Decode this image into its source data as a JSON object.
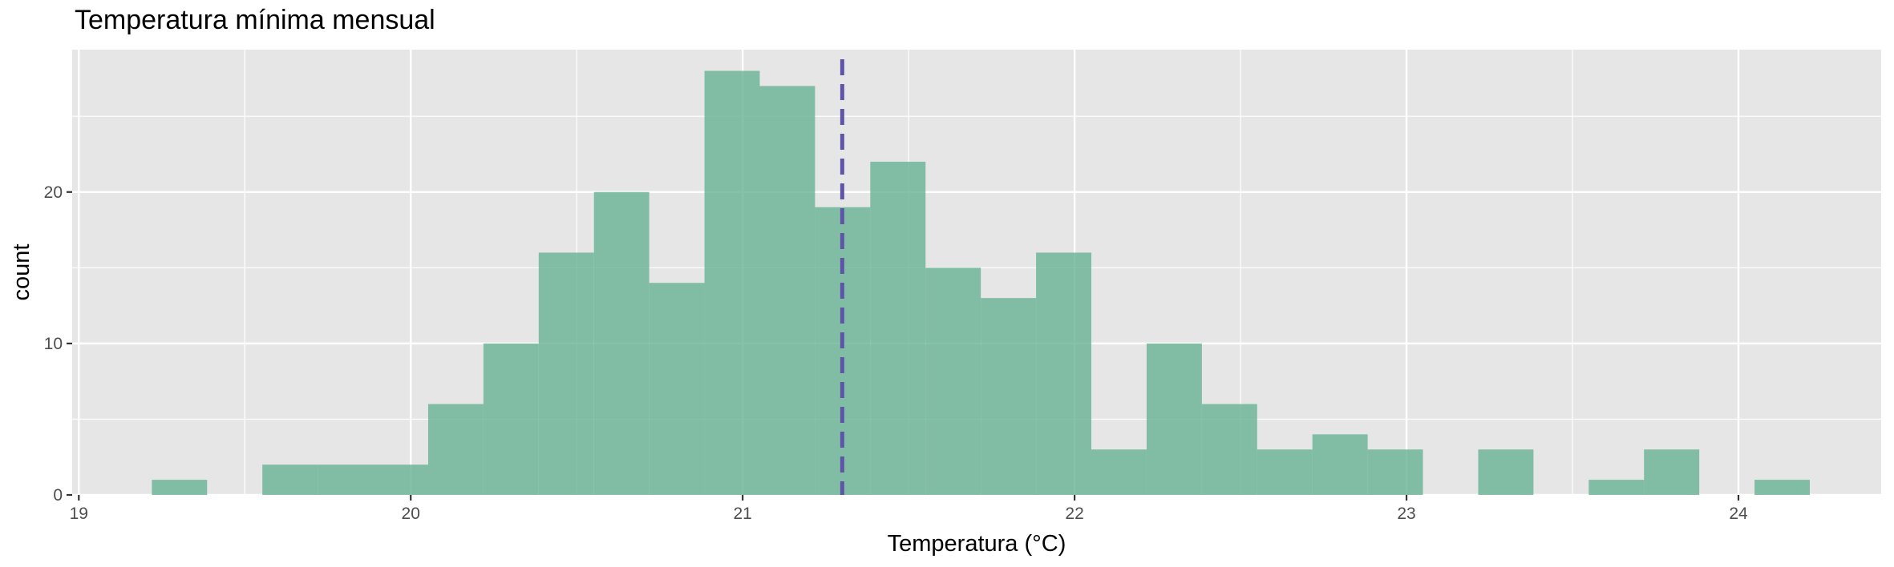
{
  "chart_data": {
    "type": "bar",
    "title": "Temperatura mínima mensual",
    "xlabel": "Temperatura (°C)",
    "ylabel": "count",
    "xlim": [
      18.98,
      24.43
    ],
    "ylim": [
      0,
      29.4
    ],
    "x_ticks": [
      19,
      20,
      21,
      22,
      23,
      24
    ],
    "y_ticks": [
      0,
      10,
      20
    ],
    "grid": true,
    "legend": "none",
    "bin_width": 0.1665,
    "bin_start": 19.22,
    "counts": [
      1,
      0,
      2,
      2,
      2,
      6,
      10,
      16,
      20,
      14,
      28,
      27,
      19,
      22,
      15,
      13,
      16,
      3,
      10,
      6,
      3,
      4,
      3,
      0,
      3,
      0,
      1,
      3,
      0,
      1
    ],
    "mean_line": {
      "x": 21.3,
      "style": "dashed",
      "color": "#5e55a8"
    },
    "colors": {
      "bar": "#66b394",
      "panel": "#e6e6e6",
      "grid": "#ffffff"
    }
  }
}
